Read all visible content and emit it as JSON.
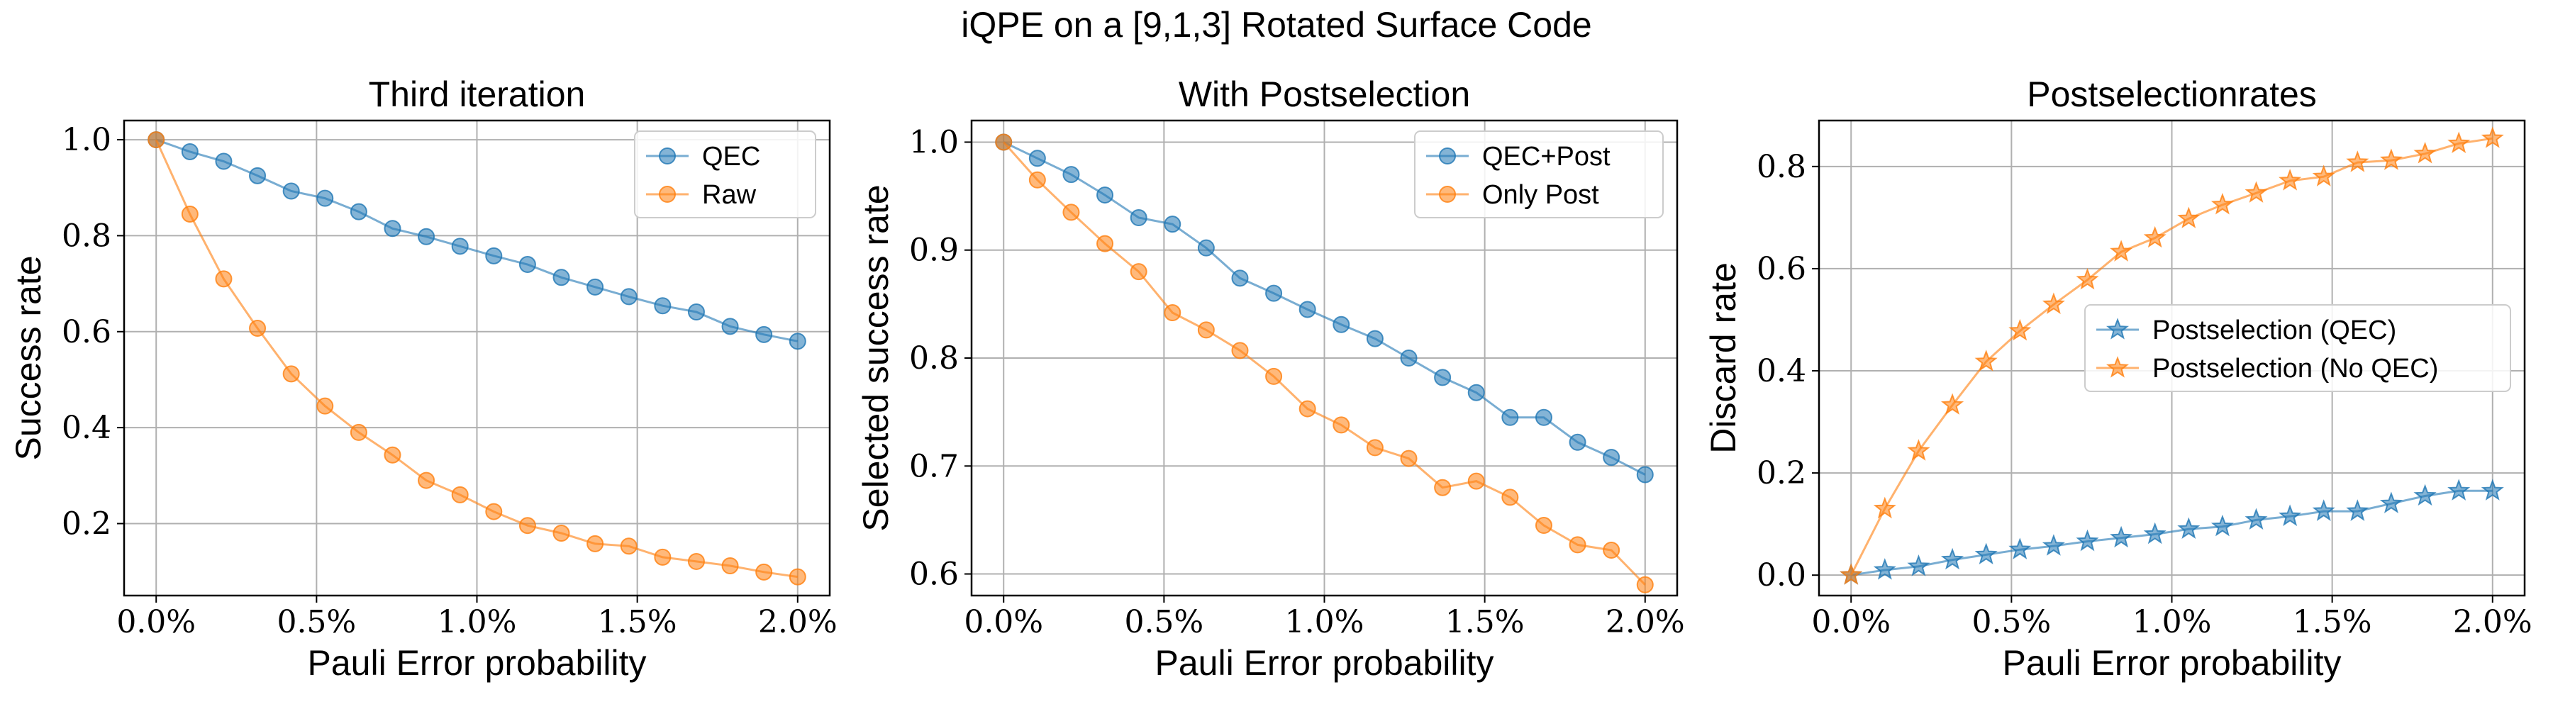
{
  "figure": {
    "suptitle": "iQPE on a [9,1,3] Rotated Surface Code"
  },
  "colors": {
    "blue": "#1f77b4",
    "orange": "#ff7f0e",
    "grid": "#b0b0b0",
    "axis": "#000000"
  },
  "chart_data": [
    {
      "type": "line",
      "title": "Third iteration",
      "xlabel": "Pauli Error probability",
      "ylabel": "Success rate",
      "x": [
        0.0,
        0.1,
        0.2,
        0.3,
        0.4,
        0.5,
        0.6,
        0.7,
        0.8,
        0.9,
        1.0,
        1.1,
        1.2,
        1.3,
        1.4,
        1.5,
        1.6,
        1.7,
        1.8,
        1.9,
        2.0
      ],
      "xlim": [
        -0.1,
        2.1
      ],
      "ylim": [
        0.05,
        1.04
      ],
      "xticks": [
        0.0,
        0.5,
        1.0,
        1.5,
        2.0
      ],
      "xtick_labels": [
        "0.0%",
        "0.5%",
        "1.0%",
        "1.5%",
        "2.0%"
      ],
      "yticks": [
        0.2,
        0.4,
        0.6,
        0.8,
        1.0
      ],
      "ytick_labels": [
        "0.2",
        "0.4",
        "0.6",
        "0.8",
        "1.0"
      ],
      "grid": true,
      "legend_position": "top-right",
      "marker": "circle",
      "series": [
        {
          "name": "QEC",
          "color": "#1f77b4",
          "values": [
            1.0,
            0.975,
            0.955,
            0.925,
            0.893,
            0.878,
            0.85,
            0.815,
            0.798,
            0.778,
            0.758,
            0.74,
            0.713,
            0.693,
            0.673,
            0.654,
            0.641,
            0.611,
            0.594,
            0.58,
            null
          ]
        },
        {
          "name": "Raw",
          "color": "#ff7f0e",
          "values": [
            1.0,
            0.845,
            0.71,
            0.607,
            0.512,
            0.445,
            0.39,
            0.343,
            0.29,
            0.26,
            0.225,
            0.196,
            0.18,
            0.158,
            0.153,
            0.13,
            0.121,
            0.112,
            0.099,
            0.089,
            null
          ]
        }
      ]
    },
    {
      "type": "line",
      "title": "With Postselection",
      "xlabel": "Pauli Error probability",
      "ylabel": "Selected success rate",
      "x": [
        0.0,
        0.1,
        0.2,
        0.3,
        0.4,
        0.5,
        0.6,
        0.7,
        0.8,
        0.9,
        1.0,
        1.1,
        1.2,
        1.3,
        1.4,
        1.5,
        1.6,
        1.7,
        1.8,
        1.9,
        2.0
      ],
      "xlim": [
        -0.1,
        2.1
      ],
      "ylim": [
        0.58,
        1.02
      ],
      "xticks": [
        0.0,
        0.5,
        1.0,
        1.5,
        2.0
      ],
      "xtick_labels": [
        "0.0%",
        "0.5%",
        "1.0%",
        "1.5%",
        "2.0%"
      ],
      "yticks": [
        0.6,
        0.7,
        0.8,
        0.9,
        1.0
      ],
      "ytick_labels": [
        "0.6",
        "0.7",
        "0.8",
        "0.9",
        "1.0"
      ],
      "grid": true,
      "legend_position": "top-right",
      "marker": "circle",
      "series": [
        {
          "name": "QEC+Post",
          "color": "#1f77b4",
          "values": [
            1.0,
            0.985,
            0.97,
            0.951,
            0.93,
            0.924,
            0.902,
            0.874,
            0.86,
            0.845,
            0.831,
            0.818,
            0.8,
            0.782,
            0.768,
            0.745,
            0.745,
            0.722,
            0.708,
            0.692,
            null
          ]
        },
        {
          "name": "Only Post",
          "color": "#ff7f0e",
          "values": [
            1.0,
            0.965,
            0.935,
            0.906,
            0.88,
            0.842,
            0.826,
            0.807,
            0.783,
            0.753,
            0.738,
            0.717,
            0.707,
            0.68,
            0.686,
            0.671,
            0.645,
            0.627,
            0.622,
            0.59,
            null
          ]
        }
      ]
    },
    {
      "type": "line",
      "title": "Postselectionrates",
      "xlabel": "Pauli Error probability",
      "ylabel": "Discard rate",
      "x": [
        0.0,
        0.1,
        0.2,
        0.3,
        0.4,
        0.5,
        0.6,
        0.7,
        0.8,
        0.9,
        1.0,
        1.1,
        1.2,
        1.3,
        1.4,
        1.5,
        1.6,
        1.7,
        1.8,
        1.9,
        2.0
      ],
      "xlim": [
        -0.1,
        2.1
      ],
      "ylim": [
        -0.04,
        0.89
      ],
      "xticks": [
        0.0,
        0.5,
        1.0,
        1.5,
        2.0
      ],
      "xtick_labels": [
        "0.0%",
        "0.5%",
        "1.0%",
        "1.5%",
        "2.0%"
      ],
      "yticks": [
        0.0,
        0.2,
        0.4,
        0.6,
        0.8
      ],
      "ytick_labels": [
        "0.0",
        "0.2",
        "0.4",
        "0.6",
        "0.8"
      ],
      "grid": true,
      "legend_position": "center-right",
      "marker": "star",
      "series": [
        {
          "name": "Postselection (QEC)",
          "color": "#1f77b4",
          "values": [
            0.0,
            0.01,
            0.017,
            0.03,
            0.04,
            0.05,
            0.057,
            0.066,
            0.073,
            0.08,
            0.09,
            0.095,
            0.108,
            0.115,
            0.125,
            0.125,
            0.14,
            0.155,
            0.165,
            0.165,
            null
          ]
        },
        {
          "name": "Postselection (No QEC)",
          "color": "#ff7f0e",
          "values": [
            0.0,
            0.13,
            0.243,
            0.333,
            0.418,
            0.478,
            0.53,
            0.578,
            0.633,
            0.66,
            0.698,
            0.725,
            0.748,
            0.772,
            0.78,
            0.808,
            0.812,
            0.825,
            0.845,
            0.855,
            null
          ]
        }
      ]
    }
  ]
}
